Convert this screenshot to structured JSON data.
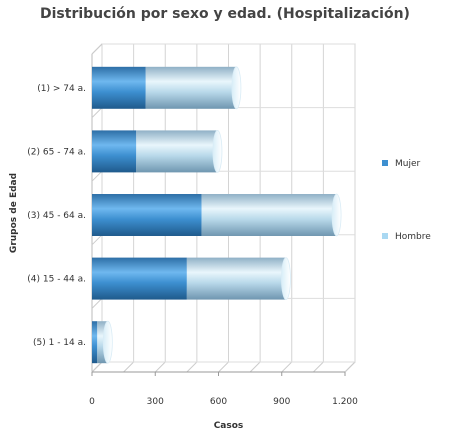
{
  "chart_data": {
    "type": "bar",
    "orientation": "horizontal",
    "stacked": true,
    "style": "3d-cylinder",
    "title": "Distribución por sexo y edad. (Hospitalización)",
    "xlabel": "Casos",
    "ylabel": "Grupos de Edad",
    "xlim": [
      0,
      1200
    ],
    "xticks": [
      0,
      300,
      600,
      900,
      1200
    ],
    "xtick_labels": [
      "0",
      "300",
      "600",
      "900",
      "1.200"
    ],
    "grid": true,
    "legend_position": "right",
    "categories": [
      "(1) > 74 a.",
      "(2) 65 - 74 a.",
      "(3) 45 - 64 a.",
      "(4) 15 - 44 a.",
      "(5) 1 - 14 a."
    ],
    "series": [
      {
        "name": "Mujer",
        "color": "#3d8fd0",
        "values": [
          255,
          210,
          520,
          450,
          25
        ]
      },
      {
        "name": "Hombre",
        "color": "#a9d8f2",
        "values": [
          430,
          385,
          640,
          470,
          50
        ]
      }
    ]
  }
}
